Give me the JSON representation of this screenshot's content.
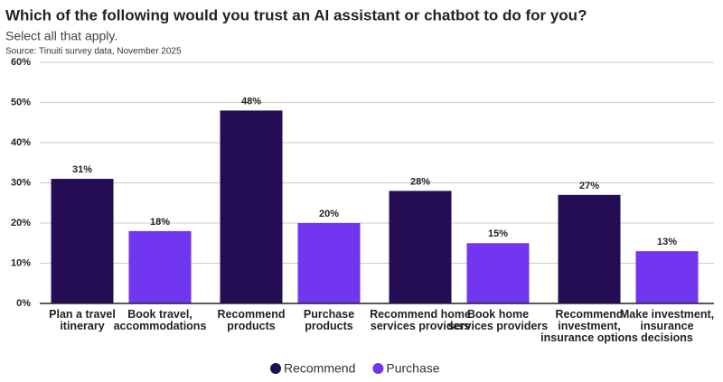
{
  "chart_data": {
    "type": "bar",
    "title": "Which of the following would you trust an AI assistant or chatbot to do for you?",
    "subtitle": "Select all that apply.",
    "source": "Source: Tinuiti survey data, November 2025",
    "categories": [
      "Plan a travel itinerary",
      "Book travel, accommodations",
      "Recommend products",
      "Purchase products",
      "Recommend home services providers",
      "Book home services providers",
      "Recommend investment, insurance options",
      "Make investment, insurance decisions"
    ],
    "series": [
      {
        "name": "Recommend",
        "color": "#240d55",
        "values": [
          31,
          null,
          48,
          null,
          28,
          null,
          27,
          null
        ],
        "value_labels": [
          "31%",
          null,
          "48%",
          null,
          "28%",
          null,
          "27%",
          null
        ]
      },
      {
        "name": "Purchase",
        "color": "#7236f0",
        "values": [
          null,
          18,
          null,
          20,
          null,
          15,
          null,
          13
        ],
        "value_labels": [
          null,
          "18%",
          null,
          "20%",
          null,
          "15%",
          null,
          "13%"
        ]
      }
    ],
    "ylim": [
      0,
      60
    ],
    "yticks": [
      {
        "value": 0,
        "label": "0%"
      },
      {
        "value": 10,
        "label": "10%"
      },
      {
        "value": 20,
        "label": "20%"
      },
      {
        "value": 30,
        "label": "30%"
      },
      {
        "value": 40,
        "label": "40%"
      },
      {
        "value": 50,
        "label": "50%"
      },
      {
        "value": 60,
        "label": "60%"
      }
    ],
    "grid": true
  }
}
